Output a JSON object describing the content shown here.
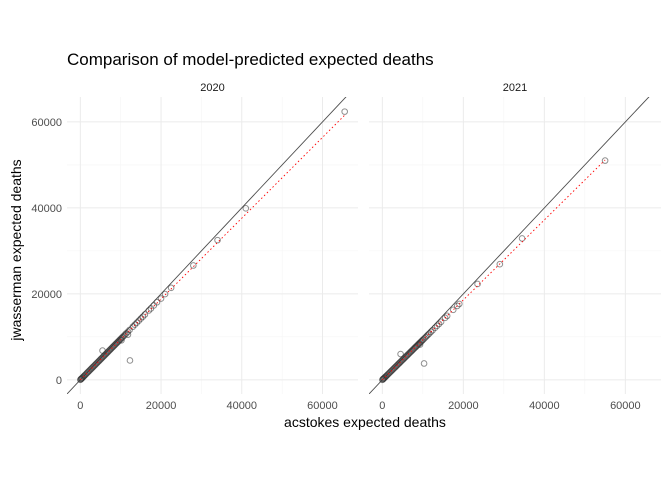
{
  "chart_data": {
    "type": "scatter",
    "title": "Comparison of model-predicted expected deaths",
    "xlabel": "acstokes expected deaths",
    "ylabel": "jwasserman expected deaths",
    "xlim": [
      -3300,
      68800
    ],
    "ylim": [
      -3300,
      65800
    ],
    "x_ticks": [
      0,
      20000,
      40000,
      60000
    ],
    "y_ticks": [
      0,
      20000,
      40000,
      60000
    ],
    "x_tick_labels": [
      "0",
      "20000",
      "40000",
      "60000"
    ],
    "y_tick_labels": [
      "0",
      "20000",
      "40000",
      "60000"
    ],
    "grid": true,
    "reference_line": "y = x (solid)",
    "fit_line": "dotted red",
    "colors": {
      "points": "#333333",
      "identity_line": "#4d4d4d",
      "fit_line": "#ff0000",
      "grid": "#ebebeb"
    },
    "panels": [
      {
        "strip": "2020",
        "fit_slope": 0.94,
        "points": [
          [
            0,
            0
          ],
          [
            100,
            110
          ],
          [
            200,
            190
          ],
          [
            300,
            280
          ],
          [
            400,
            380
          ],
          [
            500,
            470
          ],
          [
            650,
            600
          ],
          [
            800,
            760
          ],
          [
            950,
            900
          ],
          [
            1100,
            1050
          ],
          [
            1300,
            1230
          ],
          [
            1500,
            1420
          ],
          [
            1700,
            1620
          ],
          [
            1900,
            1800
          ],
          [
            2100,
            1990
          ],
          [
            2300,
            2180
          ],
          [
            2500,
            2380
          ],
          [
            2700,
            2560
          ],
          [
            2900,
            2750
          ],
          [
            3100,
            2950
          ],
          [
            3300,
            3130
          ],
          [
            3500,
            3320
          ],
          [
            3700,
            3510
          ],
          [
            3900,
            3700
          ],
          [
            4100,
            3890
          ],
          [
            4300,
            4080
          ],
          [
            4500,
            4270
          ],
          [
            4700,
            4460
          ],
          [
            4900,
            4650
          ],
          [
            5100,
            4840
          ],
          [
            5300,
            5030
          ],
          [
            5500,
            5220
          ],
          [
            5700,
            5410
          ],
          [
            5900,
            5600
          ],
          [
            6100,
            5790
          ],
          [
            6300,
            5980
          ],
          [
            6500,
            6170
          ],
          [
            6700,
            6360
          ],
          [
            6900,
            6550
          ],
          [
            7100,
            6740
          ],
          [
            7300,
            6930
          ],
          [
            7500,
            7120
          ],
          [
            7700,
            7310
          ],
          [
            7900,
            7500
          ],
          [
            8100,
            7690
          ],
          [
            8300,
            7880
          ],
          [
            8500,
            8070
          ],
          [
            8700,
            8260
          ],
          [
            8900,
            8450
          ],
          [
            9100,
            8640
          ],
          [
            9300,
            8830
          ],
          [
            9500,
            9020
          ],
          [
            9700,
            9210
          ],
          [
            9900,
            9400
          ],
          [
            10100,
            9590
          ],
          [
            10300,
            9780
          ],
          [
            10500,
            9970
          ],
          [
            10800,
            10250
          ],
          [
            11100,
            10550
          ],
          [
            11400,
            10830
          ],
          [
            11800,
            11200
          ],
          [
            12200,
            11600
          ],
          [
            13000,
            12350
          ],
          [
            13500,
            12820
          ],
          [
            14000,
            13300
          ],
          [
            14500,
            13760
          ],
          [
            15000,
            14250
          ],
          [
            15500,
            14700
          ],
          [
            16000,
            15200
          ],
          [
            17000,
            16150
          ],
          [
            17500,
            16600
          ],
          [
            18200,
            17300
          ],
          [
            19000,
            18050
          ],
          [
            20000,
            18900
          ],
          [
            21000,
            19950
          ],
          [
            22500,
            21400
          ],
          [
            28000,
            26600
          ],
          [
            34000,
            32500
          ],
          [
            41000,
            39900
          ],
          [
            65500,
            62400
          ],
          [
            5500,
            6800
          ],
          [
            12300,
            4500
          ],
          [
            10200,
            9200
          ],
          [
            11800,
            10500
          ]
        ]
      },
      {
        "strip": "2021",
        "fit_slope": 0.93,
        "points": [
          [
            0,
            0
          ],
          [
            100,
            100
          ],
          [
            200,
            190
          ],
          [
            300,
            280
          ],
          [
            400,
            370
          ],
          [
            500,
            460
          ],
          [
            650,
            600
          ],
          [
            800,
            740
          ],
          [
            950,
            880
          ],
          [
            1100,
            1020
          ],
          [
            1300,
            1210
          ],
          [
            1500,
            1390
          ],
          [
            1700,
            1580
          ],
          [
            1900,
            1770
          ],
          [
            2100,
            1950
          ],
          [
            2300,
            2140
          ],
          [
            2500,
            2330
          ],
          [
            2700,
            2510
          ],
          [
            2900,
            2700
          ],
          [
            3100,
            2880
          ],
          [
            3300,
            3070
          ],
          [
            3500,
            3260
          ],
          [
            3700,
            3440
          ],
          [
            3900,
            3630
          ],
          [
            4100,
            3810
          ],
          [
            4300,
            4000
          ],
          [
            4500,
            4190
          ],
          [
            4700,
            4370
          ],
          [
            4900,
            4560
          ],
          [
            5100,
            4740
          ],
          [
            5300,
            4930
          ],
          [
            5500,
            5120
          ],
          [
            5700,
            5300
          ],
          [
            5900,
            5490
          ],
          [
            6100,
            5670
          ],
          [
            6300,
            5860
          ],
          [
            6500,
            6050
          ],
          [
            6700,
            6230
          ],
          [
            6900,
            6420
          ],
          [
            7100,
            6600
          ],
          [
            7300,
            6790
          ],
          [
            7500,
            6980
          ],
          [
            7700,
            7160
          ],
          [
            7900,
            7350
          ],
          [
            8100,
            7530
          ],
          [
            8300,
            7720
          ],
          [
            8500,
            7910
          ],
          [
            8700,
            8090
          ],
          [
            8900,
            8280
          ],
          [
            9100,
            8460
          ],
          [
            9300,
            8650
          ],
          [
            9500,
            8840
          ],
          [
            9700,
            9020
          ],
          [
            9900,
            9210
          ],
          [
            10100,
            9390
          ],
          [
            10400,
            9670
          ],
          [
            10700,
            9950
          ],
          [
            11000,
            10230
          ],
          [
            11300,
            10510
          ],
          [
            11600,
            10790
          ],
          [
            12000,
            11160
          ],
          [
            12400,
            11530
          ],
          [
            13000,
            12090
          ],
          [
            13500,
            12560
          ],
          [
            14000,
            13020
          ],
          [
            14500,
            13490
          ],
          [
            15500,
            14420
          ],
          [
            16000,
            14880
          ],
          [
            17500,
            16280
          ],
          [
            18500,
            17200
          ],
          [
            19000,
            17670
          ],
          [
            23500,
            22300
          ],
          [
            29000,
            26900
          ],
          [
            34500,
            32900
          ],
          [
            55000,
            51000
          ],
          [
            4500,
            6000
          ],
          [
            10300,
            3800
          ],
          [
            9300,
            8200
          ]
        ]
      }
    ]
  }
}
